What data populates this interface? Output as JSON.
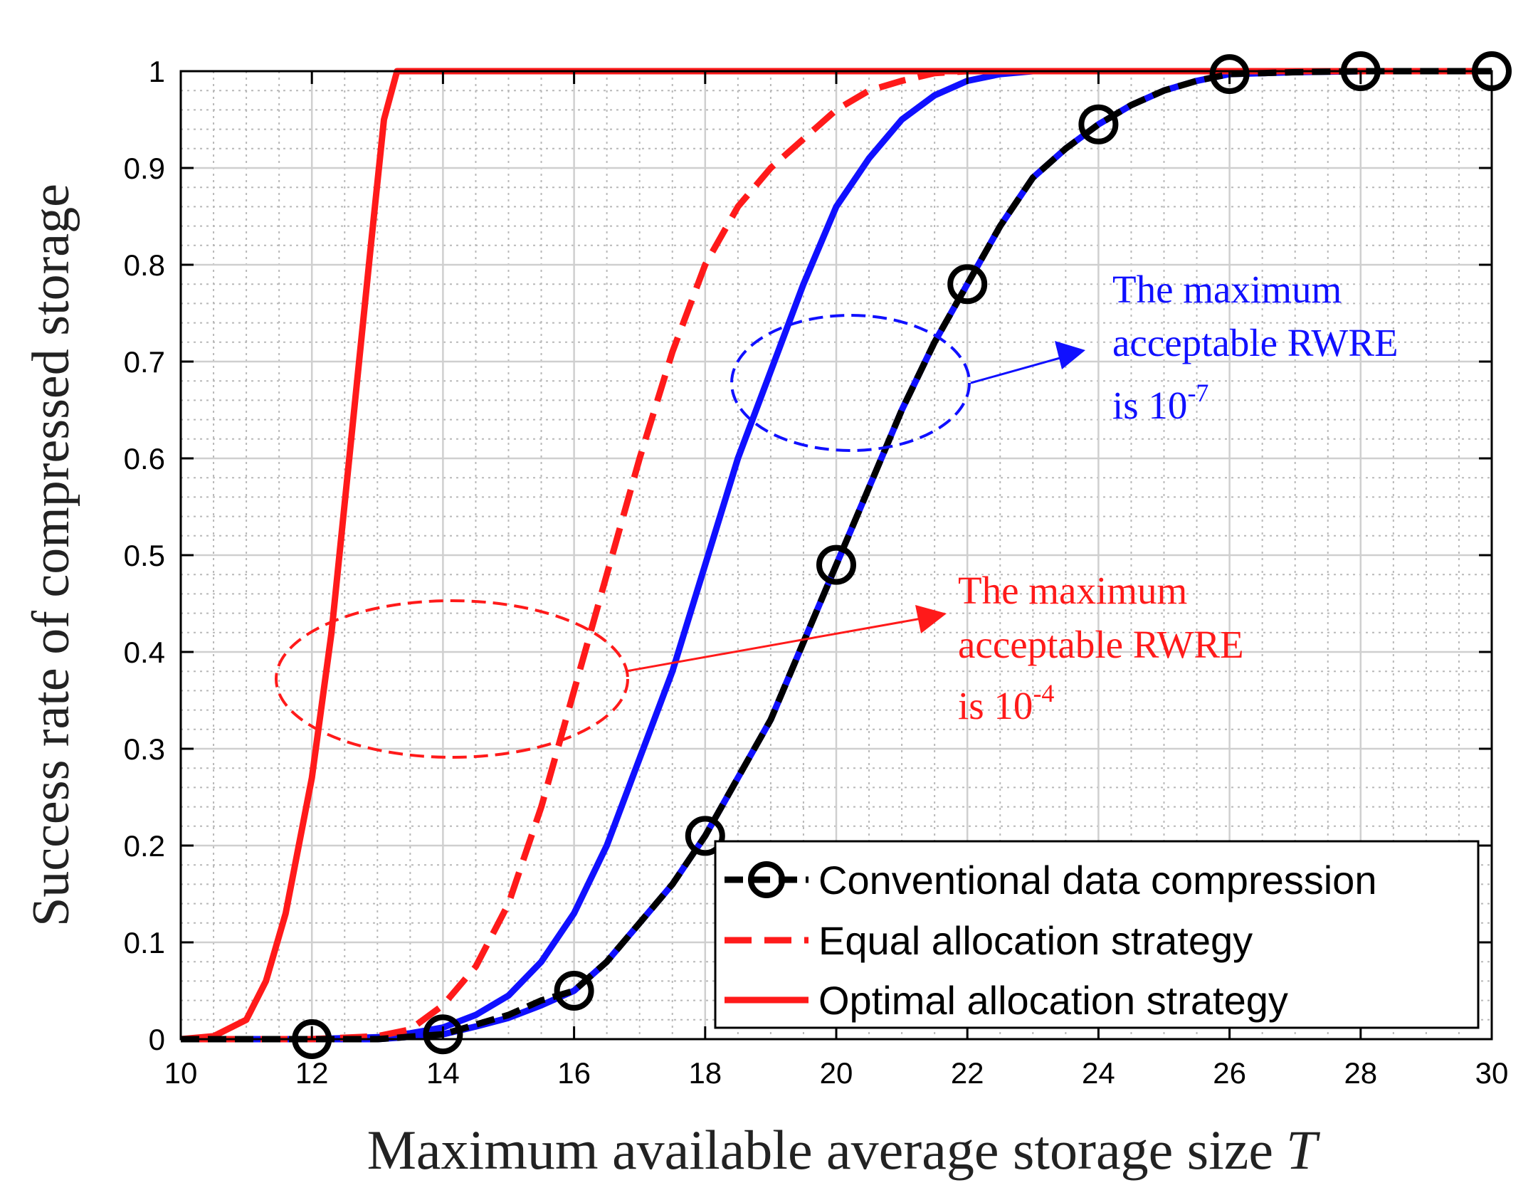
{
  "chart_data": {
    "type": "line",
    "title": "",
    "xlabel": "Maximum available average storage size",
    "xlabel_var": "T",
    "ylabel": "Success rate of compressed storage",
    "xlim": [
      10,
      30
    ],
    "ylim": [
      0,
      1
    ],
    "grid": "on (major solid, minor dotted)",
    "legend_position": "bottom-right",
    "xticks": [
      "10",
      "12",
      "14",
      "16",
      "18",
      "20",
      "22",
      "24",
      "26",
      "28",
      "30"
    ],
    "yticks": [
      "0",
      "0.1",
      "0.2",
      "0.3",
      "0.4",
      "0.5",
      "0.6",
      "0.7",
      "0.8",
      "0.9",
      "1"
    ],
    "series": [
      {
        "name": "Conventional data compression",
        "style": "dashed-with-circle-markers",
        "color": "#000000",
        "x": [
          10,
          11,
          12,
          13,
          14,
          14.5,
          15,
          15.5,
          16,
          16.5,
          17,
          17.5,
          18,
          18.5,
          19,
          19.5,
          20,
          20.5,
          21,
          21.5,
          22,
          22.5,
          23,
          23.5,
          24,
          24.5,
          25,
          25.5,
          26,
          27,
          28,
          29,
          30
        ],
        "y": [
          0,
          0,
          0,
          0,
          0.005,
          0.015,
          0.025,
          0.04,
          0.05,
          0.08,
          0.12,
          0.16,
          0.21,
          0.27,
          0.33,
          0.41,
          0.49,
          0.57,
          0.65,
          0.72,
          0.78,
          0.84,
          0.89,
          0.92,
          0.945,
          0.965,
          0.98,
          0.99,
          0.997,
          0.999,
          1,
          1,
          1
        ],
        "markers_x": [
          12,
          14,
          16,
          18,
          20,
          22,
          24,
          26,
          28,
          30
        ],
        "markers_y": [
          0,
          0.005,
          0.05,
          0.21,
          0.49,
          0.78,
          0.945,
          0.997,
          1,
          1
        ]
      },
      {
        "name": "Conventional data compression (RWRE 10^-7)",
        "style": "solid",
        "color": "#1010ff",
        "x": [
          10,
          11,
          12,
          13,
          14,
          14.5,
          15,
          15.5,
          16,
          16.5,
          17,
          17.5,
          18,
          18.5,
          19,
          19.5,
          20,
          20.5,
          21,
          21.5,
          22,
          22.5,
          23,
          23.5,
          24,
          24.5,
          25,
          25.5,
          26,
          27,
          28,
          29,
          30
        ],
        "y": [
          0,
          0,
          0,
          0,
          0.005,
          0.013,
          0.022,
          0.035,
          0.05,
          0.08,
          0.12,
          0.16,
          0.21,
          0.27,
          0.33,
          0.41,
          0.49,
          0.57,
          0.65,
          0.72,
          0.78,
          0.84,
          0.89,
          0.92,
          0.945,
          0.965,
          0.98,
          0.99,
          0.997,
          0.999,
          1,
          1,
          1
        ]
      },
      {
        "name": "Optimal allocation strategy (RWRE 10^-7)",
        "style": "solid",
        "color": "#1010ff",
        "x": [
          10,
          12,
          13,
          13.5,
          14,
          14.5,
          15,
          15.5,
          16,
          16.5,
          17,
          17.5,
          18,
          18.5,
          19,
          19.5,
          20,
          20.5,
          21,
          21.5,
          22,
          22.5,
          23,
          24,
          30
        ],
        "y": [
          0,
          0,
          0.002,
          0.006,
          0.012,
          0.025,
          0.045,
          0.08,
          0.13,
          0.2,
          0.29,
          0.38,
          0.49,
          0.6,
          0.69,
          0.78,
          0.86,
          0.91,
          0.95,
          0.975,
          0.99,
          0.997,
          1,
          1,
          1
        ]
      },
      {
        "name": "Equal allocation strategy",
        "style": "dashed",
        "color": "#ff1a1a",
        "x": [
          10,
          12,
          13,
          13.5,
          14,
          14.5,
          15,
          15.5,
          16,
          16.5,
          17,
          17.5,
          18,
          18.5,
          19,
          19.5,
          20,
          20.5,
          21,
          21.5,
          22,
          30
        ],
        "y": [
          0,
          0,
          0.003,
          0.01,
          0.035,
          0.075,
          0.14,
          0.24,
          0.36,
          0.48,
          0.6,
          0.71,
          0.8,
          0.86,
          0.9,
          0.93,
          0.96,
          0.98,
          0.99,
          0.998,
          1,
          1
        ]
      },
      {
        "name": "Optimal allocation strategy",
        "style": "solid",
        "color": "#ff1a1a",
        "x": [
          10,
          10.5,
          11,
          11.3,
          11.6,
          12,
          12.3,
          12.6,
          12.9,
          13.1,
          13.3,
          30
        ],
        "y": [
          0,
          0.003,
          0.02,
          0.06,
          0.13,
          0.27,
          0.42,
          0.62,
          0.82,
          0.95,
          1,
          1
        ]
      }
    ],
    "legend": [
      {
        "label": "Conventional data compression",
        "style": "dashed-with-circle-markers",
        "color": "#000000"
      },
      {
        "label": "Equal allocation strategy",
        "style": "dashed",
        "color": "#ff1a1a"
      },
      {
        "label": "Optimal allocation strategy",
        "style": "solid",
        "color": "#ff1a1a"
      }
    ],
    "annotations": [
      {
        "lines": [
          "The maximum",
          "acceptable RWRE"
        ],
        "prefix": "is 10",
        "exponent": "-7",
        "color": "#1010ff"
      },
      {
        "lines": [
          "The maximum",
          "acceptable RWRE"
        ],
        "prefix": "is 10",
        "exponent": "-4",
        "color": "#ff1a1a"
      }
    ]
  }
}
